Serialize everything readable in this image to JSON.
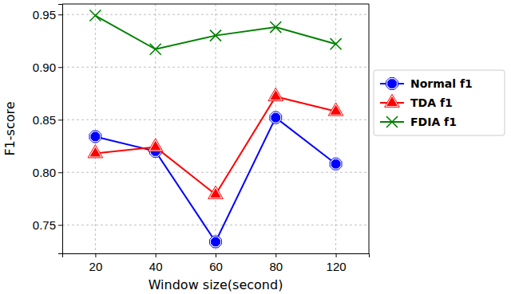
{
  "chart_data": {
    "type": "line",
    "x_label": "Window size(second)",
    "y_label": "F1-score",
    "categories": [
      "20",
      "40",
      "60",
      "80",
      "120"
    ],
    "series": [
      {
        "name": "Normal f1",
        "color": "blue",
        "marker": "octagon",
        "values": [
          0.834,
          0.82,
          0.734,
          0.852,
          0.808
        ]
      },
      {
        "name": "TDA f1",
        "color": "red",
        "marker": "triangle",
        "values": [
          0.818,
          0.824,
          0.779,
          0.872,
          0.858
        ]
      },
      {
        "name": "FDIA f1",
        "color": "green",
        "marker": "x",
        "values": [
          0.949,
          0.917,
          0.93,
          0.938,
          0.922
        ]
      }
    ],
    "ylim": [
      0.723,
      0.96
    ],
    "yticks": [
      {
        "value": 0.75,
        "label": "0.75"
      },
      {
        "value": 0.8,
        "label": "0.80"
      },
      {
        "value": 0.85,
        "label": "0.85"
      },
      {
        "value": 0.9,
        "label": "0.90"
      },
      {
        "value": 0.95,
        "label": "0.95"
      }
    ],
    "grid": true,
    "legend": "right"
  }
}
